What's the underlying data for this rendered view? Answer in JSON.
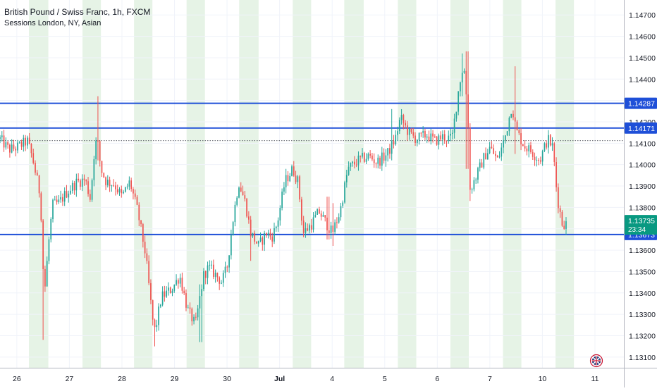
{
  "chart_data": {
    "type": "candlestick",
    "title": "British Pound / Swiss Franc, 1h, FXCM",
    "indicator": "Sessions London, NY, Asian",
    "y_axis": {
      "ylim": [
        1.1305,
        1.1477
      ],
      "ticks": [
        "1.14700",
        "1.14600",
        "1.14500",
        "1.14400",
        "1.14300",
        "1.14200",
        "1.14100",
        "1.14000",
        "1.13900",
        "1.13800",
        "1.13700",
        "1.13600",
        "1.13500",
        "1.13400",
        "1.13300",
        "1.13200",
        "1.13100"
      ]
    },
    "x_axis": {
      "ticks": [
        {
          "label": "26",
          "t": 0
        },
        {
          "label": "27",
          "t": 1
        },
        {
          "label": "28",
          "t": 2
        },
        {
          "label": "29",
          "t": 3
        },
        {
          "label": "30",
          "t": 4
        },
        {
          "label": "Jul",
          "t": 5
        },
        {
          "label": "4",
          "t": 6
        },
        {
          "label": "5",
          "t": 7
        },
        {
          "label": "6",
          "t": 8
        },
        {
          "label": "7",
          "t": 9
        },
        {
          "label": "10",
          "t": 10
        },
        {
          "label": "11",
          "t": 11
        }
      ]
    },
    "horizontal_lines": [
      {
        "price": 1.14287,
        "label": "1.14287",
        "color": "#1e4fd8"
      },
      {
        "price": 1.14171,
        "label": "1.14171",
        "color": "#1e4fd8"
      },
      {
        "price": 1.13673,
        "label": "1.13673",
        "color": "#1e4fd8"
      }
    ],
    "current_price": {
      "price": 1.13735,
      "label": "1.13735",
      "countdown": "23:34",
      "color": "#089981"
    },
    "reference_dotted_price": 1.14112,
    "session_bands": [
      {
        "start": 0.23,
        "end": 0.6
      },
      {
        "start": 1.25,
        "end": 1.6
      },
      {
        "start": 2.23,
        "end": 2.58
      },
      {
        "start": 3.23,
        "end": 3.58
      },
      {
        "start": 4.23,
        "end": 4.6
      },
      {
        "start": 5.25,
        "end": 5.6
      },
      {
        "start": 6.23,
        "end": 6.6
      },
      {
        "start": 7.25,
        "end": 7.6
      },
      {
        "start": 8.25,
        "end": 8.6
      },
      {
        "start": 9.25,
        "end": 9.6
      },
      {
        "start": 10.25,
        "end": 10.6
      }
    ],
    "path_keypoints": [
      [
        -0.32,
        1.1412
      ],
      [
        -0.15,
        1.1407
      ],
      [
        0.0,
        1.1408
      ],
      [
        0.2,
        1.1411
      ],
      [
        0.3,
        1.1403
      ],
      [
        0.45,
        1.1385
      ],
      [
        0.48,
        1.1365
      ],
      [
        0.52,
        1.1338
      ],
      [
        0.6,
        1.1362
      ],
      [
        0.68,
        1.1381
      ],
      [
        0.8,
        1.1382
      ],
      [
        0.95,
        1.1387
      ],
      [
        1.15,
        1.1392
      ],
      [
        1.3,
        1.1393
      ],
      [
        1.4,
        1.1384
      ],
      [
        1.48,
        1.1408
      ],
      [
        1.53,
        1.1412
      ],
      [
        1.6,
        1.1398
      ],
      [
        1.7,
        1.1392
      ],
      [
        1.85,
        1.1391
      ],
      [
        2.0,
        1.1385
      ],
      [
        2.15,
        1.1392
      ],
      [
        2.3,
        1.1378
      ],
      [
        2.45,
        1.1358
      ],
      [
        2.58,
        1.1328
      ],
      [
        2.63,
        1.1322
      ],
      [
        2.75,
        1.1338
      ],
      [
        2.95,
        1.1342
      ],
      [
        3.1,
        1.1348
      ],
      [
        3.25,
        1.1332
      ],
      [
        3.4,
        1.1325
      ],
      [
        3.55,
        1.1348
      ],
      [
        3.65,
        1.1352
      ],
      [
        3.8,
        1.1348
      ],
      [
        3.9,
        1.1345
      ],
      [
        4.0,
        1.1352
      ],
      [
        4.1,
        1.1372
      ],
      [
        4.22,
        1.1392
      ],
      [
        4.35,
        1.1382
      ],
      [
        4.45,
        1.1368
      ],
      [
        4.6,
        1.1362
      ],
      [
        4.75,
        1.1368
      ],
      [
        4.85,
        1.1366
      ],
      [
        4.95,
        1.1372
      ],
      [
        5.1,
        1.1392
      ],
      [
        5.25,
        1.1398
      ],
      [
        5.35,
        1.1392
      ],
      [
        5.45,
        1.1368
      ],
      [
        5.6,
        1.1372
      ],
      [
        5.75,
        1.1378
      ],
      [
        5.9,
        1.1372
      ],
      [
        6.0,
        1.1368
      ],
      [
        6.15,
        1.1378
      ],
      [
        6.3,
        1.1398
      ],
      [
        6.5,
        1.1402
      ],
      [
        6.7,
        1.1404
      ],
      [
        6.85,
        1.1401
      ],
      [
        7.05,
        1.1405
      ],
      [
        7.2,
        1.1412
      ],
      [
        7.3,
        1.1422
      ],
      [
        7.45,
        1.1415
      ],
      [
        7.6,
        1.1412
      ],
      [
        7.8,
        1.1414
      ],
      [
        7.95,
        1.1411
      ],
      [
        8.1,
        1.1413
      ],
      [
        8.28,
        1.1412
      ],
      [
        8.42,
        1.1438
      ],
      [
        8.5,
        1.1447
      ],
      [
        8.58,
        1.1425
      ],
      [
        8.62,
        1.1388
      ],
      [
        8.75,
        1.1395
      ],
      [
        8.9,
        1.1404
      ],
      [
        9.0,
        1.1408
      ],
      [
        9.15,
        1.1402
      ],
      [
        9.3,
        1.1414
      ],
      [
        9.42,
        1.1428
      ],
      [
        9.5,
        1.1416
      ],
      [
        9.65,
        1.1409
      ],
      [
        9.8,
        1.1406
      ],
      [
        9.95,
        1.1402
      ],
      [
        10.1,
        1.1412
      ],
      [
        10.2,
        1.1408
      ],
      [
        10.28,
        1.1385
      ],
      [
        10.38,
        1.1372
      ],
      [
        10.45,
        1.1373
      ]
    ],
    "spikes": [
      {
        "t": 0.5,
        "high": 1.1342,
        "low": 1.1318
      },
      {
        "t": 1.55,
        "high": 1.1432,
        "low": 1.1402
      },
      {
        "t": 2.62,
        "high": 1.1328,
        "low": 1.1315
      },
      {
        "t": 3.5,
        "high": 1.1344,
        "low": 1.1317
      },
      {
        "t": 8.48,
        "high": 1.1452,
        "low": 1.1432
      },
      {
        "t": 8.57,
        "high": 1.1453,
        "low": 1.1398
      },
      {
        "t": 8.62,
        "high": 1.1396,
        "low": 1.1383
      },
      {
        "t": 9.48,
        "high": 1.1446,
        "low": 1.1405
      },
      {
        "t": 7.12,
        "high": 1.1426,
        "low": 1.1402
      },
      {
        "t": 6.02,
        "high": 1.1382,
        "low": 1.1362
      },
      {
        "t": 4.45,
        "high": 1.1376,
        "low": 1.1355
      },
      {
        "t": 5.92,
        "high": 1.1385,
        "low": 1.1365
      }
    ],
    "candle_count": 290,
    "colors": {
      "up": "#26a69a",
      "down": "#ef5350",
      "session": "#e6f3e6",
      "grid": "#f0f3fa",
      "axis_text": "#131722",
      "line": "#1e4fd8"
    }
  },
  "footer_icon": "union-jack-flag-icon"
}
